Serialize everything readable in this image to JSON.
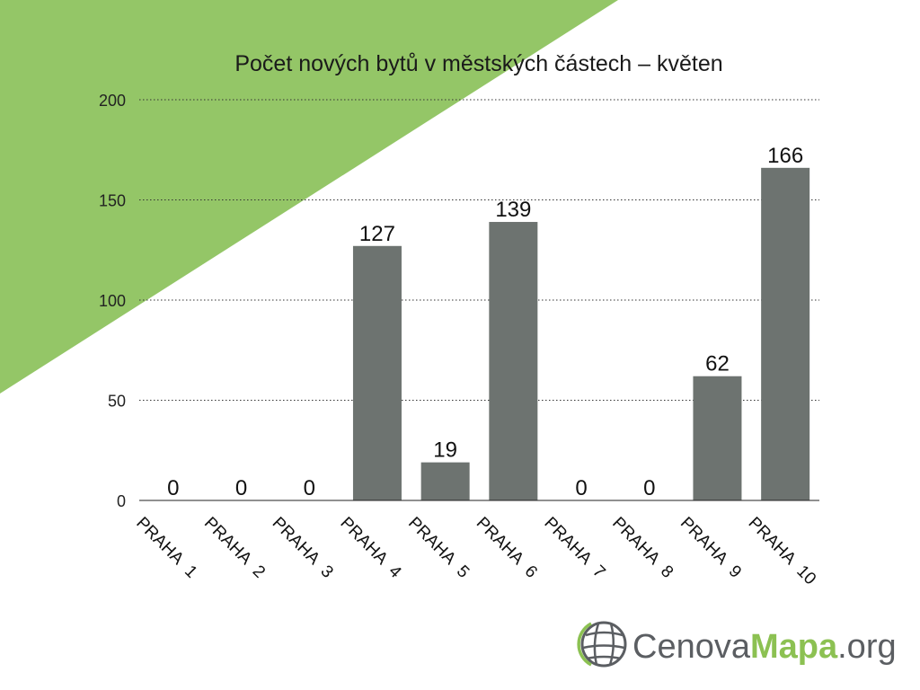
{
  "colors": {
    "background": "#ffffff",
    "accent_triangle": "#94c667",
    "bar": "#6d7370",
    "gridline": "#333333",
    "logo_gray": "#5b5e62",
    "logo_green": "#8cc152"
  },
  "logo": {
    "icon": "globe-grid-icon",
    "text_part1": "Cenova",
    "text_part2": "Mapa",
    "text_part3": ".org"
  },
  "chart_data": {
    "type": "bar",
    "title": "Počet nových bytů v městských částech – květen",
    "xlabel": "",
    "ylabel": "",
    "categories": [
      "PRAHA 1",
      "PRAHA 2",
      "PRAHA 3",
      "PRAHA 4",
      "PRAHA 5",
      "PRAHA 6",
      "PRAHA 7",
      "PRAHA 8",
      "PRAHA 9",
      "PRAHA 10"
    ],
    "values": [
      0,
      0,
      0,
      127,
      19,
      139,
      0,
      0,
      62,
      166
    ],
    "ylim": [
      0,
      200
    ],
    "yticks": [
      0,
      50,
      100,
      150,
      200
    ],
    "grid": "dotted horizontal",
    "legend": "none",
    "data_labels": true
  }
}
